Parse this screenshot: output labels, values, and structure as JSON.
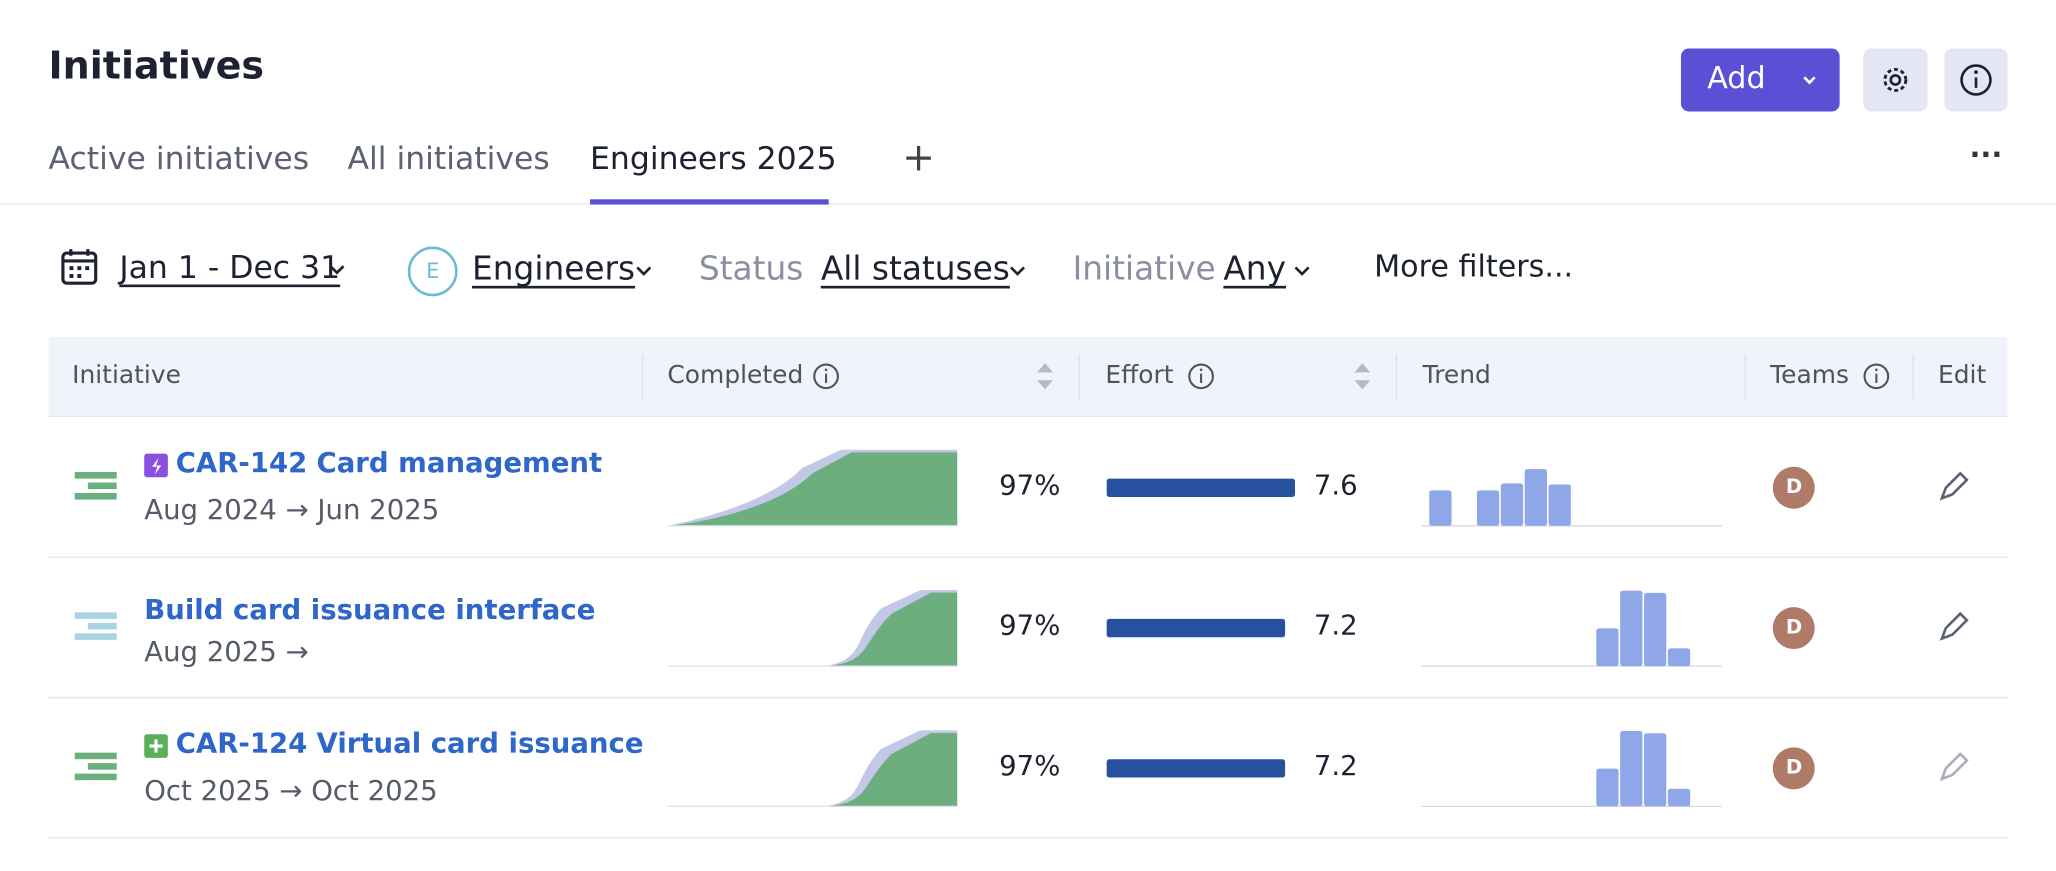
{
  "header": {
    "title": "Initiatives",
    "add_button": "Add"
  },
  "tabs": [
    "Active initiatives",
    "All initiatives",
    "Engineers 2025"
  ],
  "active_tab": 2,
  "filters": {
    "date_range": "Jan 1 - Dec 31",
    "team_avatar": "E",
    "team": "Engineers",
    "status_label": "Status",
    "status_value": "All statuses",
    "initiative_label": "Initiative",
    "initiative_value": "Any",
    "more": "More filters..."
  },
  "table": {
    "columns": [
      "Initiative",
      "Completed",
      "Effort",
      "Trend",
      "Teams",
      "Edit"
    ],
    "rows": [
      {
        "key": "CAR-142",
        "title": "Card management",
        "dates": "Aug 2024 → Jun 2025",
        "completed": "97%",
        "effort": 7.6,
        "trend": [
          30,
          null,
          30,
          36,
          48,
          35,
          null,
          null,
          null,
          null,
          null,
          null
        ],
        "team": "D",
        "icon_color": "#6aaf7c",
        "badge_color": "#8a4fe0"
      },
      {
        "title": "Build card issuance interface",
        "dates": "Aug 2025 →",
        "completed": "97%",
        "effort": 7.2,
        "trend": [
          null,
          null,
          null,
          null,
          null,
          null,
          null,
          32,
          64,
          62,
          15,
          null
        ],
        "team": "D",
        "icon_color": "#a8d4e4"
      },
      {
        "key": "CAR-124",
        "title": "Virtual card issuance",
        "dates": "Oct 2025 → Oct 2025",
        "completed": "97%",
        "effort": 7.2,
        "trend": [
          null,
          null,
          null,
          null,
          null,
          null,
          null,
          32,
          64,
          62,
          15,
          null
        ],
        "team": "D",
        "icon_color": "#6aaf7c",
        "badge_color": "#5cae5a"
      }
    ]
  }
}
